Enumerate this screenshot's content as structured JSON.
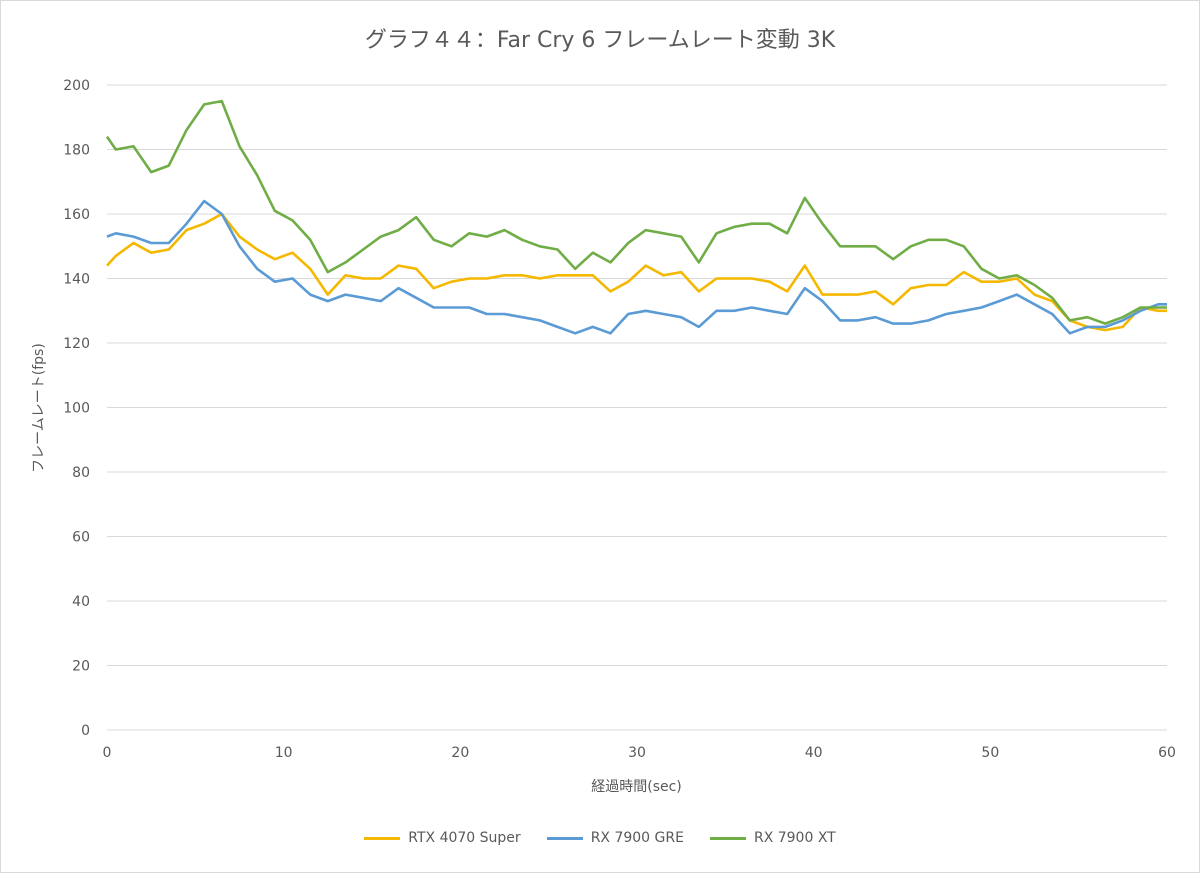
{
  "chart_data": {
    "type": "line",
    "title": "グラフ４４：Far Cry 6 フレームレート変動 3K",
    "xlabel": "経過時間(sec)",
    "ylabel": "フレームレート(fps)",
    "xlim": [
      0,
      60
    ],
    "ylim": [
      0,
      200
    ],
    "xticks": [
      "0",
      "10",
      "20",
      "30",
      "40",
      "50",
      "60"
    ],
    "yticks": [
      "0",
      "20",
      "40",
      "60",
      "80",
      "100",
      "120",
      "140",
      "160",
      "180",
      "200"
    ],
    "grid": "horizontal",
    "legend_position": "bottom",
    "x": [
      0,
      0.5,
      1.5,
      2.5,
      3.5,
      4.5,
      5.5,
      6.5,
      7.5,
      8.5,
      9.5,
      10.5,
      11.5,
      12.5,
      13.5,
      14.5,
      15.5,
      16.5,
      17.5,
      18.5,
      19.5,
      20.5,
      21.5,
      22.5,
      23.5,
      24.5,
      25.5,
      26.5,
      27.5,
      28.5,
      29.5,
      30.5,
      31.5,
      32.5,
      33.5,
      34.5,
      35.5,
      36.5,
      37.5,
      38.5,
      39.5,
      40.5,
      41.5,
      42.5,
      43.5,
      44.5,
      45.5,
      46.5,
      47.5,
      48.5,
      49.5,
      50.5,
      51.5,
      52.5,
      53.5,
      54.5,
      55.5,
      56.5,
      57.5,
      58.5,
      59.5,
      60
    ],
    "series": [
      {
        "name": "RTX 4070 Super",
        "color": "#f5b800",
        "values": [
          144,
          147,
          151,
          148,
          149,
          155,
          157,
          160,
          153,
          149,
          146,
          148,
          143,
          135,
          141,
          140,
          140,
          144,
          143,
          137,
          139,
          140,
          140,
          141,
          141,
          140,
          141,
          141,
          141,
          136,
          139,
          144,
          141,
          142,
          136,
          140,
          140,
          140,
          139,
          136,
          144,
          135,
          135,
          135,
          136,
          132,
          137,
          138,
          138,
          142,
          139,
          139,
          140,
          135,
          133,
          127,
          125,
          124,
          125,
          131,
          130,
          130
        ]
      },
      {
        "name": "RX 7900 GRE",
        "color": "#5b9bd5",
        "values": [
          153,
          154,
          153,
          151,
          151,
          157,
          164,
          160,
          150,
          143,
          139,
          140,
          135,
          133,
          135,
          134,
          133,
          137,
          134,
          131,
          131,
          131,
          129,
          129,
          128,
          127,
          125,
          123,
          125,
          123,
          129,
          130,
          129,
          128,
          125,
          130,
          130,
          131,
          130,
          129,
          137,
          133,
          127,
          127,
          128,
          126,
          126,
          127,
          129,
          130,
          131,
          133,
          135,
          132,
          129,
          123,
          125,
          125,
          127,
          130,
          132,
          132
        ]
      },
      {
        "name": "RX 7900 XT",
        "color": "#70ad47",
        "values": [
          184,
          180,
          181,
          173,
          175,
          186,
          194,
          195,
          181,
          172,
          161,
          158,
          152,
          142,
          145,
          149,
          153,
          155,
          159,
          152,
          150,
          154,
          153,
          155,
          152,
          150,
          149,
          143,
          148,
          145,
          151,
          155,
          154,
          153,
          145,
          154,
          156,
          157,
          157,
          154,
          165,
          157,
          150,
          150,
          150,
          146,
          150,
          152,
          152,
          150,
          143,
          140,
          141,
          138,
          134,
          127,
          128,
          126,
          128,
          131,
          131,
          131
        ]
      }
    ]
  }
}
